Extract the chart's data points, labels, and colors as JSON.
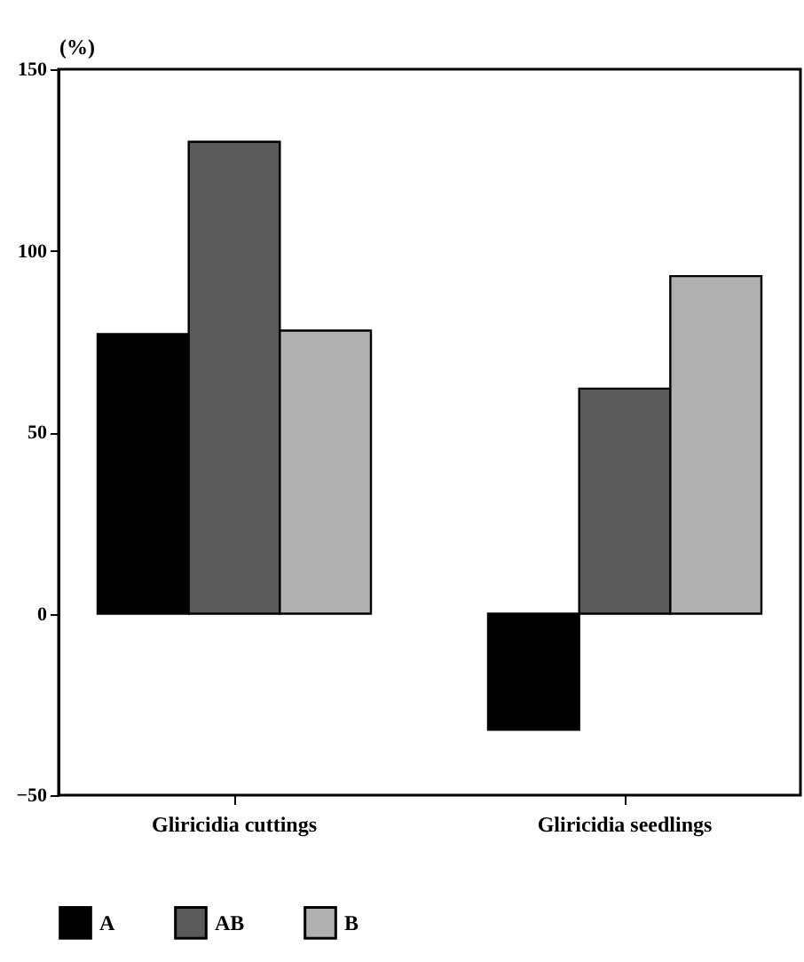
{
  "chart_data": {
    "type": "bar",
    "ylabel": "(%)",
    "categories": [
      "Gliricidia cuttings",
      "Gliricidia seedlings"
    ],
    "series": [
      {
        "name": "A",
        "color": "#000000",
        "values": [
          77,
          -32
        ]
      },
      {
        "name": "AB",
        "color": "#5a5a5a",
        "values": [
          130,
          62
        ]
      },
      {
        "name": "B",
        "color": "#b0b0b0",
        "values": [
          78,
          93
        ]
      }
    ],
    "ylim": [
      -50,
      150
    ],
    "yticks": [
      -50,
      0,
      50,
      100,
      150
    ],
    "grid": false,
    "legend": "bottom"
  }
}
